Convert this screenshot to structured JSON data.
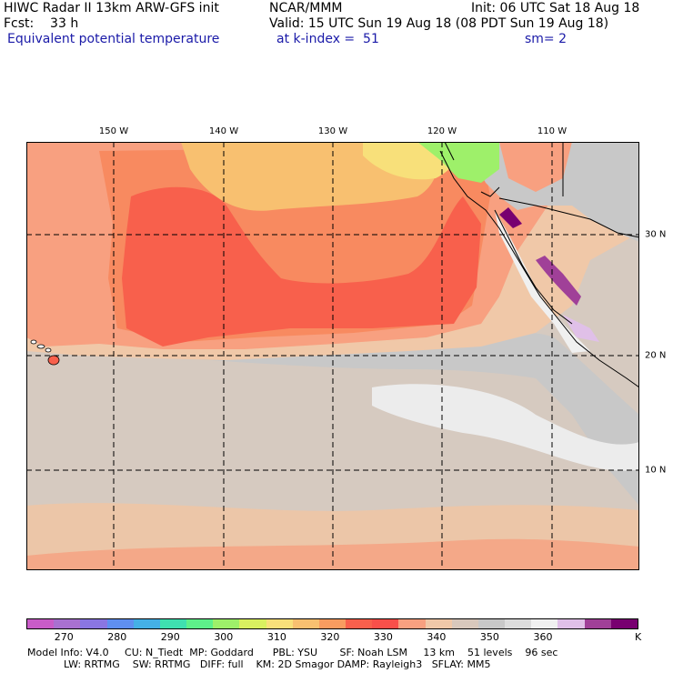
{
  "header": {
    "line1_left": "HIWC Radar II 13km ARW-GFS init",
    "line1_mid": "NCAR/MMM",
    "line1_right": "Init: 06 UTC Sat 18 Aug 18",
    "line2_left": "Fcst:    33 h",
    "line2_right": "Valid: 15 UTC Sun 19 Aug 18 (08 PDT Sun 19 Aug 18)",
    "line3_left": "Equivalent potential temperature",
    "line3_mid": "at k-index =  51",
    "line3_right": "sm= 2"
  },
  "map": {
    "lon_labels": [
      "150 W",
      "140 W",
      "130 W",
      "120 W",
      "110 W"
    ],
    "lat_labels": [
      "30 N",
      "20 N",
      "10 N"
    ]
  },
  "colorbar": {
    "colors": [
      "#c95cc8",
      "#a971d0",
      "#8a76e2",
      "#5f8ff0",
      "#45b0e6",
      "#3fe0b0",
      "#5ef08a",
      "#9ef06a",
      "#d9f060",
      "#f8e07a",
      "#f8c070",
      "#f89c60",
      "#f8604c",
      "#f8504a",
      "#f8a080",
      "#f0c8a8",
      "#d8c8bc",
      "#c8c8c8",
      "#dcdcdc",
      "#f0f0f0",
      "#e0c0e8",
      "#a04098",
      "#780070"
    ],
    "ticks": [
      "270",
      "280",
      "290",
      "300",
      "310",
      "320",
      "330",
      "340",
      "350",
      "360"
    ],
    "unit": "K"
  },
  "footer": {
    "line1": "Model Info: V4.0     CU: N_Tiedt  MP: Goddard      PBL: YSU       SF: Noah LSM     13 km    51 levels    96 sec",
    "line2": "LW: RRTMG    SW: RRTMG   DIFF: full    KM: 2D Smagor DAMP: Rayleigh3   SFLAY: MM5"
  }
}
